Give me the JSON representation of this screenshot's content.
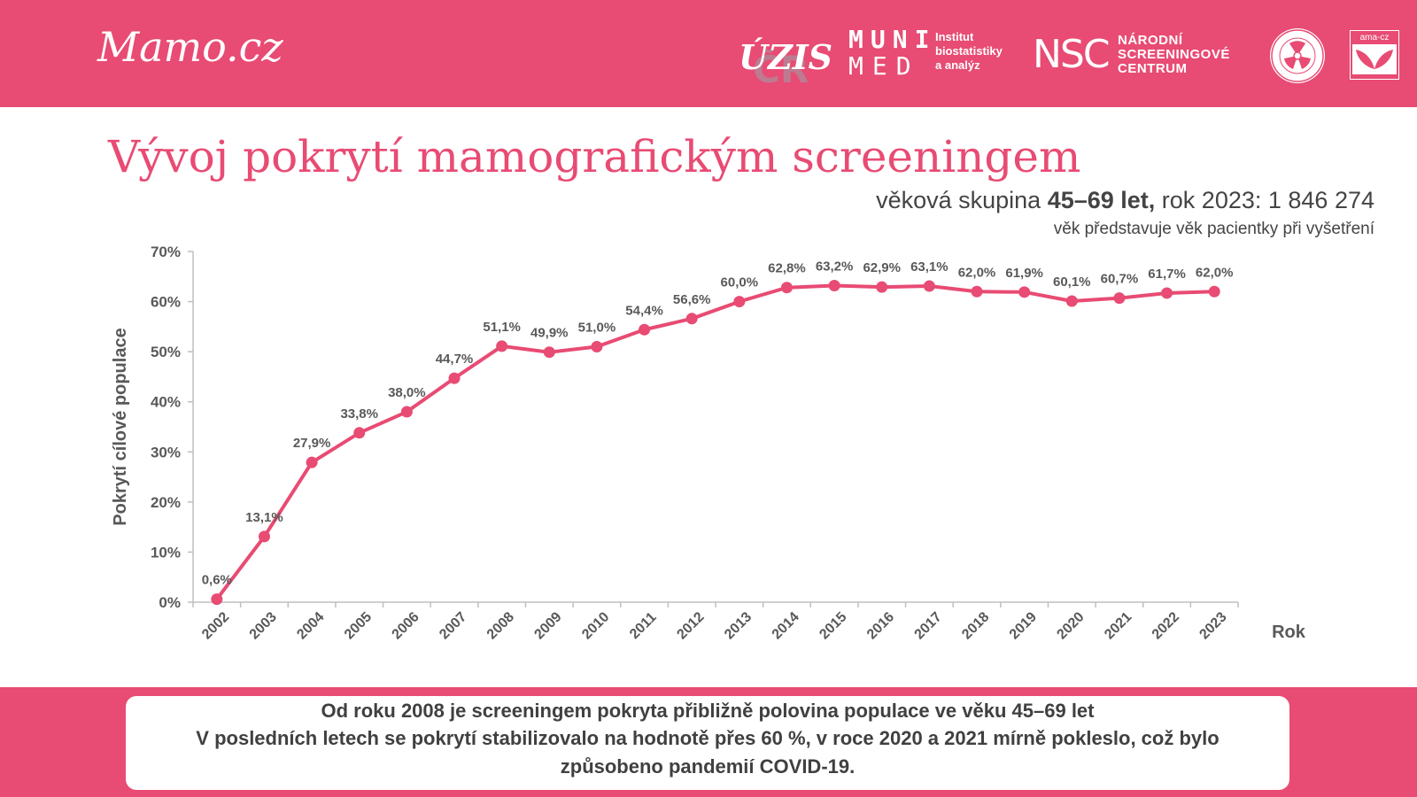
{
  "header": {
    "brand": "Mamo.cz",
    "logos": {
      "uzis_main": "ÚZIS",
      "uzis_sub": "ČR",
      "muni_top": "MUNI",
      "muni_bottom": "MED",
      "iba_line1": "Institut",
      "iba_line2": "biostatistiky",
      "iba_line3": "a analýz",
      "nsc_mark": "NSC",
      "nsc_line1": "NÁRODNÍ",
      "nsc_line2": "SCREENINGOVÉ",
      "nsc_line3": "CENTRUM",
      "ama": "ama-cz"
    }
  },
  "title": "Vývoj pokrytí mamografickým screeningem",
  "subtitle": {
    "prefix": "věková skupina ",
    "bold": "45–69 let,",
    "suffix": " rok 2023: 1 846 274"
  },
  "note": "věk představuje věk pacientky při vyšetření",
  "chart_data": {
    "type": "line",
    "title": "",
    "xlabel": "Rok",
    "ylabel": "Pokrytí cílové populace",
    "ylim": [
      0,
      70
    ],
    "yticks": [
      "0%",
      "10%",
      "20%",
      "30%",
      "40%",
      "50%",
      "60%",
      "70%"
    ],
    "grid": false,
    "color": "#e84b73",
    "categories": [
      "2002",
      "2003",
      "2004",
      "2005",
      "2006",
      "2007",
      "2008",
      "2009",
      "2010",
      "2011",
      "2012",
      "2013",
      "2014",
      "2015",
      "2016",
      "2017",
      "2018",
      "2019",
      "2020",
      "2021",
      "2022",
      "2023"
    ],
    "values": [
      0.6,
      13.1,
      27.9,
      33.8,
      38.0,
      44.7,
      51.1,
      49.9,
      51.0,
      54.4,
      56.6,
      60.0,
      62.8,
      63.2,
      62.9,
      63.1,
      62.0,
      61.9,
      60.1,
      60.7,
      61.7,
      62.0
    ],
    "labels": [
      "0,6%",
      "13,1%",
      "27,9%",
      "33,8%",
      "38,0%",
      "44,7%",
      "51,1%",
      "49,9%",
      "51,0%",
      "54,4%",
      "56,6%",
      "60,0%",
      "62,8%",
      "63,2%",
      "62,9%",
      "63,1%",
      "62,0%",
      "61,9%",
      "60,1%",
      "60,7%",
      "61,7%",
      "62,0%"
    ]
  },
  "footer": {
    "line1": "Od roku 2008 je screeningem pokryta přibližně polovina populace ve věku 45–69 let",
    "line2": "V posledních letech se pokrytí stabilizovalo na hodnotě přes 60 %, v roce 2020 a 2021 mírně pokleslo, což bylo",
    "line3": "způsobeno pandemií COVID-19."
  }
}
